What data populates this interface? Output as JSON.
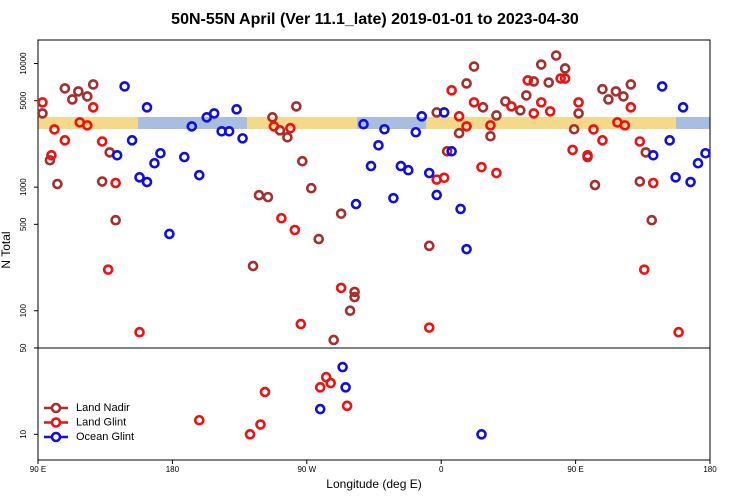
{
  "chart_data": {
    "type": "scatter",
    "title": "50N-55N April (Ver 11.1_late)   2019-01-01 to 2023-04-30",
    "x_label": "Longitude (deg E)",
    "y_label": "N Total",
    "xlim": [
      90,
      540
    ],
    "xticks": [
      {
        "value": 90,
        "label": "90 E"
      },
      {
        "value": 180,
        "label": "180"
      },
      {
        "value": 270,
        "label": "90 W"
      },
      {
        "value": 360,
        "label": "0"
      },
      {
        "value": 450,
        "label": "90 E"
      },
      {
        "value": 540,
        "label": "180"
      }
    ],
    "ylim": [
      6.2,
      15500
    ],
    "yscale": "log",
    "yticks": [
      10,
      50,
      100,
      500,
      1000,
      5000,
      10000
    ],
    "legend": "bottom-left",
    "series": [
      {
        "name": "Land Nadir",
        "color": "#a3302f",
        "x": [
          93,
          98,
          103,
          108,
          113,
          117,
          123,
          127,
          133,
          138,
          142,
          247,
          252,
          257,
          263,
          267,
          273,
          278,
          293,
          302,
          302,
          299,
          288,
          238,
          244,
          234,
          352,
          357,
          364,
          372,
          377,
          382,
          388,
          393,
          397,
          403,
          413,
          417,
          422,
          427,
          432,
          437,
          443,
          449,
          452,
          458,
          463,
          468,
          472,
          477,
          482,
          487,
          493,
          497,
          501
        ],
        "values": [
          3950,
          1650,
          1060,
          6290,
          5120,
          5950,
          5420,
          6770,
          1110,
          1910,
          540,
          3670,
          2880,
          2530,
          4500,
          1620,
          980,
          380,
          610,
          142,
          129,
          100,
          58,
          860,
          830,
          230,
          335,
          4020,
          1950,
          2730,
          6900,
          9450,
          4420,
          2580,
          3800,
          4940,
          4180,
          5520,
          7160,
          9810,
          7020,
          11600,
          9120,
          2940,
          3950,
          1750,
          1040,
          6200,
          5120,
          5950,
          5420,
          6770,
          1110,
          1910,
          540
        ]
      },
      {
        "name": "Land Glint",
        "color": "#ee1111",
        "x": [
          93,
          99,
          101,
          108,
          118,
          123,
          127,
          133,
          137,
          142,
          158,
          198,
          232,
          239,
          242,
          248,
          253,
          259,
          262,
          266,
          279,
          283,
          286,
          293,
          297,
          352,
          357,
          362,
          367,
          372,
          377,
          382,
          387,
          393,
          397,
          407,
          422,
          418,
          427,
          433,
          440,
          443,
          448,
          452,
          458,
          462,
          468,
          478,
          483,
          487,
          493,
          496,
          502,
          519
        ],
        "values": [
          4850,
          1810,
          2930,
          2390,
          3340,
          3160,
          4420,
          2340,
          215,
          1080,
          67,
          13,
          10,
          12,
          22,
          3100,
          560,
          3000,
          450,
          78,
          24,
          29,
          26,
          153,
          17,
          73,
          1150,
          1190,
          6070,
          3740,
          3100,
          4850,
          1450,
          3160,
          1300,
          4500,
          3950,
          7300,
          4850,
          4100,
          7560,
          7560,
          2000,
          4850,
          1810,
          2930,
          2390,
          3340,
          3160,
          4420,
          2340,
          215,
          1080,
          67
        ]
      },
      {
        "name": "Ocean Glint",
        "color": "#1010dd",
        "x": [
          148,
          153,
          143,
          163,
          158,
          163,
          168,
          172,
          178,
          188,
          193,
          198,
          203,
          208,
          213,
          218,
          223,
          227,
          294,
          296,
          279,
          303,
          308,
          313,
          318,
          322,
          328,
          333,
          338,
          343,
          347,
          352,
          357,
          362,
          367,
          373,
          377,
          387,
          508,
          513,
          502,
          522,
          517,
          527,
          532,
          537
        ],
        "values": [
          6530,
          2390,
          1810,
          4420,
          1200,
          1100,
          1560,
          1880,
          418,
          1750,
          3100,
          1250,
          3670,
          3950,
          2830,
          2830,
          4260,
          2480,
          35,
          24,
          16,
          729,
          3230,
          1480,
          2180,
          2940,
          814,
          1480,
          1370,
          2780,
          3740,
          1300,
          864,
          4020,
          1950,
          666,
          315,
          10,
          6530,
          2390,
          1810,
          4420,
          1200,
          1100,
          1560,
          1880
        ]
      }
    ]
  }
}
